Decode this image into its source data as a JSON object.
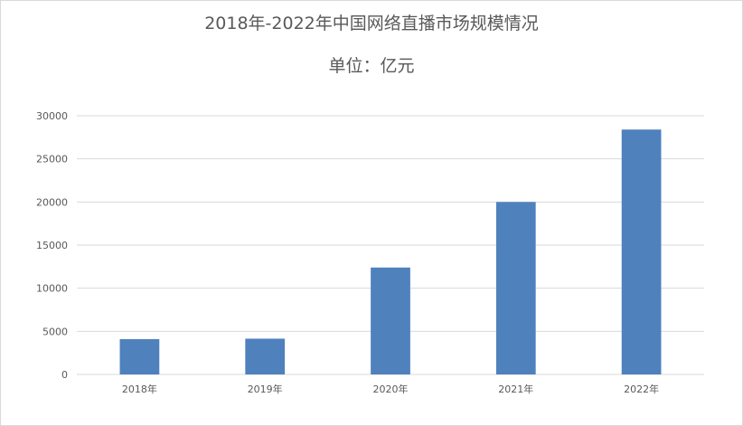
{
  "chart_data": {
    "type": "bar",
    "title": "2018年-2022年中国网络直播市场规模情况",
    "subtitle": "单位：亿元",
    "xlabel": "",
    "ylabel": "",
    "categories": [
      "2018年",
      "2019年",
      "2020年",
      "2021年",
      "2022年"
    ],
    "values": [
      4100,
      4150,
      12400,
      20000,
      28400
    ],
    "ylim": [
      0,
      30000
    ],
    "yticks": [
      0,
      5000,
      10000,
      15000,
      20000,
      25000,
      30000
    ],
    "grid": true,
    "legend": "none",
    "bar_color": "#4f81bd",
    "grid_color": "#d9d9d9"
  }
}
